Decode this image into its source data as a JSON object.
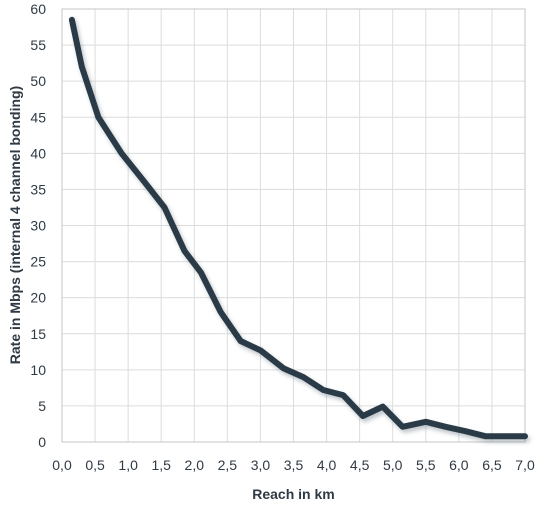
{
  "chart_data": {
    "type": "line",
    "title": "",
    "xlabel": "Reach in km",
    "ylabel": "Rate in Mbps (internal 4 channel bonding)",
    "xlim": [
      0,
      7
    ],
    "ylim": [
      0,
      60
    ],
    "x_ticks": [
      0,
      0.5,
      1,
      1.5,
      2,
      2.5,
      3,
      3.5,
      4,
      4.5,
      5,
      5.5,
      6,
      6.5,
      7
    ],
    "x_tick_labels": [
      "0,0",
      "0,5",
      "1,0",
      "1,5",
      "2,0",
      "2,5",
      "3,0",
      "3,5",
      "4,0",
      "4,5",
      "5,0",
      "5,5",
      "6,0",
      "6,5",
      "7,0"
    ],
    "y_ticks": [
      0,
      5,
      10,
      15,
      20,
      25,
      30,
      35,
      40,
      45,
      50,
      55,
      60
    ],
    "y_tick_labels": [
      "0",
      "5",
      "10",
      "15",
      "20",
      "25",
      "30",
      "35",
      "40",
      "45",
      "50",
      "55",
      "60"
    ],
    "grid": true,
    "line_color": "#2b3a46",
    "series": [
      {
        "x": [
          0.15,
          0.3,
          0.55,
          0.9,
          1.25,
          1.55,
          1.85,
          2.1,
          2.4,
          2.7,
          3.0,
          3.35,
          3.65,
          3.95,
          4.25,
          4.55,
          4.85,
          5.15,
          5.5,
          5.8,
          6.1,
          6.4,
          6.7,
          7.0
        ],
        "y": [
          58.5,
          52,
          45,
          40,
          36,
          32.5,
          26.5,
          23.5,
          18,
          14,
          12.7,
          10.2,
          9,
          7.2,
          6.5,
          3.6,
          4.9,
          2.1,
          2.8,
          2.1,
          1.5,
          0.8,
          0.8,
          0.8
        ]
      }
    ]
  }
}
